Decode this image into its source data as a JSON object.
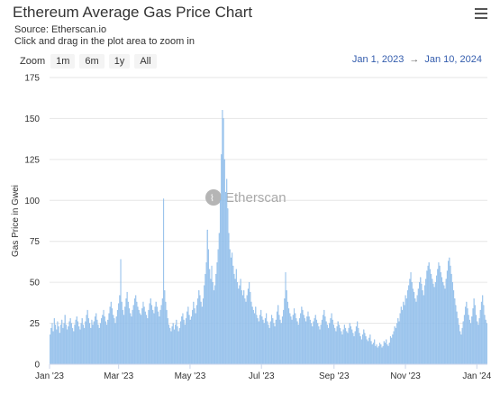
{
  "header": {
    "title": "Ethereum Average Gas Price Chart",
    "source": "Source: Etherscan.io",
    "hint": "Click and drag in the plot area to zoom in"
  },
  "zoom": {
    "label": "Zoom",
    "buttons": [
      "1m",
      "6m",
      "1y",
      "All"
    ]
  },
  "range": {
    "from": "Jan 1, 2023",
    "arrow": "→",
    "to": "Jan 10, 2024"
  },
  "watermark": "Etherscan",
  "colors": {
    "bar": "#a9cdf0",
    "bar_stroke": "#7fb3e6",
    "grid": "#e6e6e6",
    "accent": "#335cad"
  },
  "chart_data": {
    "type": "bar",
    "title": "Ethereum Average Gas Price Chart",
    "subtitle": "Source: Etherscan.io",
    "ylabel": "Gas Price in Gwei",
    "xlabel": "",
    "ylim": [
      0,
      175
    ],
    "yticks": [
      0,
      25,
      50,
      75,
      100,
      125,
      150,
      175
    ],
    "grid": true,
    "x_start": "2023-01-01",
    "x_end": "2024-01-10",
    "xticks": [
      {
        "label": "Jan '23",
        "date": "2023-01-01"
      },
      {
        "label": "Mar '23",
        "date": "2023-03-01"
      },
      {
        "label": "May '23",
        "date": "2023-05-01"
      },
      {
        "label": "Jul '23",
        "date": "2023-07-01"
      },
      {
        "label": "Sep '23",
        "date": "2023-09-01"
      },
      {
        "label": "Nov '23",
        "date": "2023-11-01"
      },
      {
        "label": "Jan '24",
        "date": "2024-01-01"
      }
    ],
    "series": [
      {
        "values": [
          18,
          22,
          25,
          20,
          28,
          24,
          21,
          26,
          23,
          19,
          24,
          27,
          22,
          25,
          30,
          24,
          21,
          23,
          26,
          28,
          25,
          22,
          20,
          24,
          27,
          29,
          26,
          23,
          21,
          25,
          28,
          24,
          22,
          26,
          30,
          33,
          28,
          25,
          22,
          27,
          24,
          26,
          29,
          31,
          27,
          24,
          22,
          25,
          28,
          30,
          33,
          29,
          26,
          24,
          27,
          31,
          35,
          38,
          34,
          30,
          28,
          25,
          29,
          33,
          37,
          42,
          64,
          38,
          33,
          30,
          35,
          40,
          44,
          38,
          34,
          31,
          29,
          33,
          36,
          40,
          42,
          38,
          35,
          33,
          31,
          30,
          34,
          38,
          35,
          32,
          30,
          28,
          33,
          37,
          40,
          36,
          33,
          31,
          35,
          38,
          35,
          32,
          29,
          33,
          36,
          40,
          101,
          45,
          38,
          33,
          28,
          24,
          22,
          20,
          23,
          25,
          21,
          24,
          27,
          23,
          20,
          22,
          26,
          29,
          31,
          27,
          24,
          28,
          32,
          35,
          30,
          27,
          29,
          33,
          38,
          34,
          31,
          36,
          40,
          45,
          42,
          38,
          35,
          40,
          48,
          55,
          62,
          82,
          70,
          58,
          52,
          60,
          50,
          45,
          48,
          55,
          62,
          70,
          80,
          100,
          128,
          155,
          150,
          125,
          105,
          113,
          95,
          80,
          70,
          65,
          68,
          60,
          55,
          52,
          58,
          50,
          46,
          48,
          52,
          45,
          42,
          45,
          40,
          38,
          42,
          46,
          50,
          44,
          38,
          35,
          33,
          31,
          35,
          30,
          28,
          26,
          30,
          33,
          29,
          27,
          25,
          28,
          31,
          26,
          24,
          22,
          26,
          30,
          28,
          25,
          23,
          27,
          32,
          36,
          30,
          27,
          25,
          29,
          33,
          40,
          56,
          45,
          38,
          34,
          31,
          29,
          27,
          30,
          34,
          31,
          28,
          26,
          24,
          28,
          31,
          35,
          33,
          30,
          28,
          26,
          29,
          32,
          29,
          27,
          25,
          23,
          26,
          28,
          30,
          27,
          25,
          23,
          21,
          24,
          27,
          30,
          33,
          29,
          26,
          24,
          22,
          25,
          28,
          31,
          27,
          24,
          22,
          20,
          23,
          26,
          24,
          22,
          20,
          18,
          21,
          24,
          22,
          20,
          19,
          22,
          25,
          23,
          21,
          19,
          17,
          20,
          23,
          26,
          22,
          19,
          17,
          15,
          18,
          21,
          19,
          17,
          15,
          14,
          16,
          18,
          14,
          12,
          13,
          15,
          11,
          12,
          10,
          11,
          13,
          12,
          10,
          11,
          14,
          13,
          15,
          12,
          11,
          13,
          17,
          16,
          18,
          20,
          23,
          22,
          25,
          28,
          26,
          31,
          35,
          33,
          38,
          36,
          42,
          40,
          45,
          48,
          52,
          56,
          50,
          46,
          44,
          40,
          38,
          42,
          46,
          50,
          53,
          49,
          45,
          42,
          48,
          52,
          57,
          60,
          62,
          58,
          55,
          52,
          49,
          47,
          50,
          54,
          58,
          62,
          60,
          56,
          53,
          50,
          48,
          46,
          52,
          57,
          63,
          65,
          60,
          55,
          50,
          45,
          40,
          36,
          32,
          28,
          24,
          20,
          18,
          22,
          26,
          30,
          35,
          38,
          34,
          30,
          27,
          25,
          29,
          34,
          40,
          36,
          30,
          26,
          24,
          28,
          33,
          38,
          42,
          36,
          30,
          27,
          25
        ]
      }
    ]
  }
}
